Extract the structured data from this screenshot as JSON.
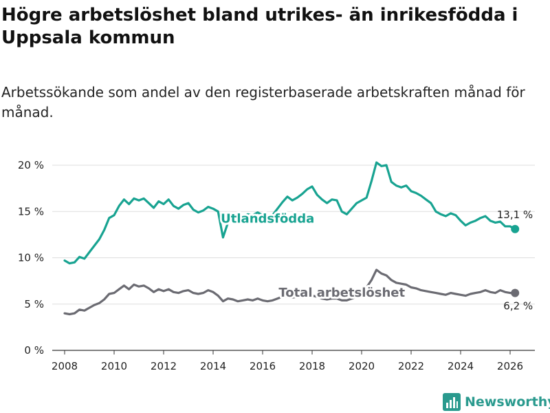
{
  "title": "Högre arbetslöshet bland utrikes- än inrikesfödda i Uppsala kommun",
  "subtitle": "Arbetssökande som andel av den registerbaserade arbetskraften månad för månad.",
  "brand": {
    "name": "Newsworthy",
    "color": "#2a9a8e",
    "icon": "newsworthy-logo-icon"
  },
  "colors": {
    "utlandsfodda": "#18a391",
    "total": "#6b6b72",
    "grid": "#dddddd"
  },
  "chart_data": {
    "type": "line",
    "title": "Högre arbetslöshet bland utrikes- än inrikesfödda i Uppsala kommun",
    "xlabel": "",
    "ylabel": "",
    "xlim": [
      2007.5,
      2027.0
    ],
    "ylim": [
      0,
      20
    ],
    "grid": true,
    "x_ticks": [
      2008,
      2010,
      2012,
      2014,
      2016,
      2018,
      2020,
      2022,
      2024,
      2026
    ],
    "y_ticks": [
      0,
      5,
      10,
      15,
      20
    ],
    "y_tick_labels": [
      "0 %",
      "5 %",
      "10 %",
      "15 %",
      "20 %"
    ],
    "series": [
      {
        "name": "Utlandsfödda",
        "color": "#18a391",
        "end_label": "13,1 %",
        "points": [
          [
            2008.0,
            9.7
          ],
          [
            2008.2,
            9.4
          ],
          [
            2008.4,
            9.5
          ],
          [
            2008.6,
            10.1
          ],
          [
            2008.8,
            9.9
          ],
          [
            2009.0,
            10.6
          ],
          [
            2009.2,
            11.3
          ],
          [
            2009.4,
            12.0
          ],
          [
            2009.6,
            13.0
          ],
          [
            2009.8,
            14.3
          ],
          [
            2010.0,
            14.6
          ],
          [
            2010.2,
            15.6
          ],
          [
            2010.4,
            16.3
          ],
          [
            2010.6,
            15.8
          ],
          [
            2010.8,
            16.4
          ],
          [
            2011.0,
            16.2
          ],
          [
            2011.2,
            16.4
          ],
          [
            2011.4,
            15.9
          ],
          [
            2011.6,
            15.4
          ],
          [
            2011.8,
            16.1
          ],
          [
            2012.0,
            15.8
          ],
          [
            2012.2,
            16.3
          ],
          [
            2012.4,
            15.6
          ],
          [
            2012.6,
            15.3
          ],
          [
            2012.8,
            15.7
          ],
          [
            2013.0,
            15.9
          ],
          [
            2013.2,
            15.2
          ],
          [
            2013.4,
            14.9
          ],
          [
            2013.6,
            15.1
          ],
          [
            2013.8,
            15.5
          ],
          [
            2014.0,
            15.3
          ],
          [
            2014.2,
            15.0
          ],
          [
            2014.4,
            12.2
          ],
          [
            2014.6,
            13.8
          ],
          [
            2014.8,
            14.3
          ],
          [
            2015.0,
            14.0
          ],
          [
            2015.2,
            14.4
          ],
          [
            2015.4,
            14.7
          ],
          [
            2015.6,
            14.6
          ],
          [
            2015.8,
            14.9
          ],
          [
            2016.0,
            14.6
          ],
          [
            2016.2,
            14.2
          ],
          [
            2016.4,
            14.6
          ],
          [
            2016.6,
            15.3
          ],
          [
            2016.8,
            16.0
          ],
          [
            2017.0,
            16.6
          ],
          [
            2017.2,
            16.2
          ],
          [
            2017.4,
            16.5
          ],
          [
            2017.6,
            16.9
          ],
          [
            2017.8,
            17.4
          ],
          [
            2018.0,
            17.7
          ],
          [
            2018.2,
            16.8
          ],
          [
            2018.4,
            16.3
          ],
          [
            2018.6,
            15.9
          ],
          [
            2018.8,
            16.3
          ],
          [
            2019.0,
            16.2
          ],
          [
            2019.2,
            15.0
          ],
          [
            2019.4,
            14.7
          ],
          [
            2019.6,
            15.3
          ],
          [
            2019.8,
            15.9
          ],
          [
            2020.0,
            16.2
          ],
          [
            2020.2,
            16.5
          ],
          [
            2020.4,
            18.3
          ],
          [
            2020.6,
            20.3
          ],
          [
            2020.8,
            19.9
          ],
          [
            2021.0,
            20.0
          ],
          [
            2021.2,
            18.2
          ],
          [
            2021.4,
            17.8
          ],
          [
            2021.6,
            17.6
          ],
          [
            2021.8,
            17.8
          ],
          [
            2022.0,
            17.2
          ],
          [
            2022.2,
            17.0
          ],
          [
            2022.4,
            16.7
          ],
          [
            2022.6,
            16.3
          ],
          [
            2022.8,
            15.9
          ],
          [
            2023.0,
            15.0
          ],
          [
            2023.2,
            14.7
          ],
          [
            2023.4,
            14.5
          ],
          [
            2023.6,
            14.8
          ],
          [
            2023.8,
            14.6
          ],
          [
            2024.0,
            14.0
          ],
          [
            2024.2,
            13.5
          ],
          [
            2024.4,
            13.8
          ],
          [
            2024.6,
            14.0
          ],
          [
            2024.8,
            14.3
          ],
          [
            2025.0,
            14.5
          ],
          [
            2025.2,
            14.0
          ],
          [
            2025.4,
            13.8
          ],
          [
            2025.6,
            13.9
          ],
          [
            2025.8,
            13.4
          ],
          [
            2026.0,
            13.4
          ],
          [
            2026.2,
            13.1
          ]
        ]
      },
      {
        "name": "Total arbetslöshet",
        "color": "#6b6b72",
        "end_label": "6,2 %",
        "points": [
          [
            2008.0,
            4.0
          ],
          [
            2008.2,
            3.9
          ],
          [
            2008.4,
            4.0
          ],
          [
            2008.6,
            4.4
          ],
          [
            2008.8,
            4.3
          ],
          [
            2009.0,
            4.6
          ],
          [
            2009.2,
            4.9
          ],
          [
            2009.4,
            5.1
          ],
          [
            2009.6,
            5.5
          ],
          [
            2009.8,
            6.1
          ],
          [
            2010.0,
            6.2
          ],
          [
            2010.2,
            6.6
          ],
          [
            2010.4,
            7.0
          ],
          [
            2010.6,
            6.6
          ],
          [
            2010.8,
            7.1
          ],
          [
            2011.0,
            6.9
          ],
          [
            2011.2,
            7.0
          ],
          [
            2011.4,
            6.7
          ],
          [
            2011.6,
            6.3
          ],
          [
            2011.8,
            6.6
          ],
          [
            2012.0,
            6.4
          ],
          [
            2012.2,
            6.6
          ],
          [
            2012.4,
            6.3
          ],
          [
            2012.6,
            6.2
          ],
          [
            2012.8,
            6.4
          ],
          [
            2013.0,
            6.5
          ],
          [
            2013.2,
            6.2
          ],
          [
            2013.4,
            6.1
          ],
          [
            2013.6,
            6.2
          ],
          [
            2013.8,
            6.5
          ],
          [
            2014.0,
            6.3
          ],
          [
            2014.2,
            5.9
          ],
          [
            2014.4,
            5.3
          ],
          [
            2014.6,
            5.6
          ],
          [
            2014.8,
            5.5
          ],
          [
            2015.0,
            5.3
          ],
          [
            2015.2,
            5.4
          ],
          [
            2015.4,
            5.5
          ],
          [
            2015.6,
            5.4
          ],
          [
            2015.8,
            5.6
          ],
          [
            2016.0,
            5.4
          ],
          [
            2016.2,
            5.3
          ],
          [
            2016.4,
            5.4
          ],
          [
            2016.6,
            5.6
          ],
          [
            2016.8,
            5.8
          ],
          [
            2017.0,
            5.8
          ],
          [
            2017.2,
            5.7
          ],
          [
            2017.4,
            5.8
          ],
          [
            2017.6,
            5.7
          ],
          [
            2017.8,
            5.8
          ],
          [
            2018.0,
            5.9
          ],
          [
            2018.2,
            5.8
          ],
          [
            2018.4,
            5.6
          ],
          [
            2018.6,
            5.5
          ],
          [
            2018.8,
            5.6
          ],
          [
            2019.0,
            5.6
          ],
          [
            2019.2,
            5.4
          ],
          [
            2019.4,
            5.4
          ],
          [
            2019.6,
            5.6
          ],
          [
            2019.8,
            5.8
          ],
          [
            2020.0,
            6.1
          ],
          [
            2020.2,
            6.8
          ],
          [
            2020.4,
            7.6
          ],
          [
            2020.6,
            8.7
          ],
          [
            2020.8,
            8.3
          ],
          [
            2021.0,
            8.1
          ],
          [
            2021.2,
            7.6
          ],
          [
            2021.4,
            7.3
          ],
          [
            2021.6,
            7.2
          ],
          [
            2021.8,
            7.1
          ],
          [
            2022.0,
            6.8
          ],
          [
            2022.2,
            6.7
          ],
          [
            2022.4,
            6.5
          ],
          [
            2022.6,
            6.4
          ],
          [
            2022.8,
            6.3
          ],
          [
            2023.0,
            6.2
          ],
          [
            2023.2,
            6.1
          ],
          [
            2023.4,
            6.0
          ],
          [
            2023.6,
            6.2
          ],
          [
            2023.8,
            6.1
          ],
          [
            2024.0,
            6.0
          ],
          [
            2024.2,
            5.9
          ],
          [
            2024.4,
            6.1
          ],
          [
            2024.6,
            6.2
          ],
          [
            2024.8,
            6.3
          ],
          [
            2025.0,
            6.5
          ],
          [
            2025.2,
            6.3
          ],
          [
            2025.4,
            6.2
          ],
          [
            2025.6,
            6.5
          ],
          [
            2025.8,
            6.3
          ],
          [
            2026.0,
            6.2
          ],
          [
            2026.2,
            6.2
          ]
        ]
      }
    ]
  }
}
